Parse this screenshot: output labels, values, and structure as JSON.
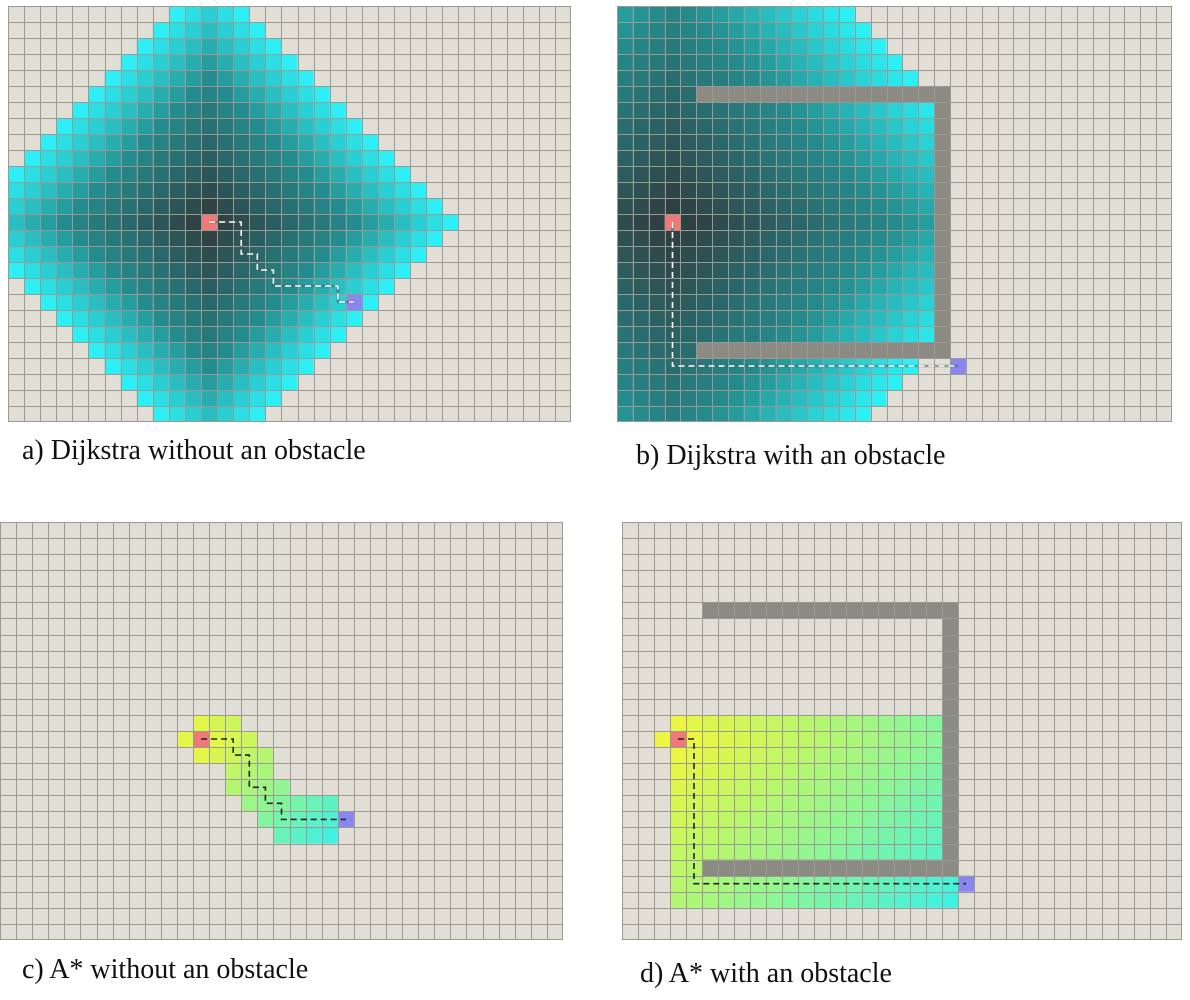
{
  "colors": {
    "background": "#e0ded5",
    "grid_line": "#9a9a92",
    "wall": "#8b8b83",
    "start": "#f07878",
    "goal": "#8a86f0",
    "path_light": "#ffffff",
    "path_dark": "#222222"
  },
  "grid": {
    "cols": 35,
    "rows": 26
  },
  "panels": [
    {
      "caption": "a) Dijkstra without an obstacle",
      "algorithm": "dijkstra",
      "start": [
        12,
        13
      ],
      "goal": [
        21,
        18
      ],
      "explored_radius": 15,
      "walls": [],
      "path": [
        [
          12,
          13
        ],
        [
          14,
          13
        ],
        [
          14,
          15
        ],
        [
          15,
          15
        ],
        [
          15,
          16
        ],
        [
          16,
          16
        ],
        [
          16,
          17
        ],
        [
          20,
          17
        ],
        [
          20,
          18
        ],
        [
          21,
          18
        ]
      ],
      "path_style": "light"
    },
    {
      "caption": "b) Dijkstra with an obstacle",
      "algorithm": "dijkstra",
      "start": [
        3,
        13
      ],
      "goal": [
        21,
        22
      ],
      "explored_radius": 24,
      "walls": [
        {
          "from": [
            5,
            5
          ],
          "to": [
            20,
            5
          ]
        },
        {
          "from": [
            20,
            5
          ],
          "to": [
            20,
            21
          ]
        },
        {
          "from": [
            5,
            21
          ],
          "to": [
            20,
            21
          ]
        }
      ],
      "path": [
        [
          3,
          13
        ],
        [
          3,
          22
        ],
        [
          21,
          22
        ]
      ],
      "path_style": "light"
    },
    {
      "caption": "c) A* without an obstacle",
      "algorithm": "astar",
      "start": [
        12,
        13
      ],
      "goal": [
        21,
        18
      ],
      "explored_cells": [
        [
          11,
          13
        ],
        [
          12,
          12
        ],
        [
          13,
          12
        ],
        [
          14,
          12
        ],
        [
          13,
          13
        ],
        [
          14,
          13
        ],
        [
          15,
          13
        ],
        [
          12,
          14
        ],
        [
          13,
          14
        ],
        [
          14,
          14
        ],
        [
          15,
          14
        ],
        [
          16,
          14
        ],
        [
          14,
          15
        ],
        [
          15,
          15
        ],
        [
          16,
          15
        ],
        [
          14,
          16
        ],
        [
          15,
          16
        ],
        [
          16,
          16
        ],
        [
          17,
          16
        ],
        [
          15,
          17
        ],
        [
          16,
          17
        ],
        [
          17,
          17
        ],
        [
          18,
          17
        ],
        [
          19,
          17
        ],
        [
          20,
          17
        ],
        [
          16,
          18
        ],
        [
          17,
          18
        ],
        [
          18,
          18
        ],
        [
          19,
          18
        ],
        [
          20,
          18
        ],
        [
          17,
          19
        ],
        [
          18,
          19
        ],
        [
          19,
          19
        ],
        [
          20,
          19
        ]
      ],
      "walls": [],
      "path": [
        [
          12,
          13
        ],
        [
          14,
          13
        ],
        [
          14,
          14
        ],
        [
          15,
          14
        ],
        [
          15,
          16
        ],
        [
          16,
          16
        ],
        [
          16,
          17
        ],
        [
          17,
          17
        ],
        [
          17,
          18
        ],
        [
          21,
          18
        ]
      ],
      "path_style": "dark"
    },
    {
      "caption": "d) A* with an obstacle",
      "algorithm": "astar",
      "start": [
        3,
        13
      ],
      "goal": [
        21,
        22
      ],
      "explored_box": [
        3,
        12,
        20,
        23
      ],
      "extra_explored": [
        [
          2,
          13
        ]
      ],
      "walls": [
        {
          "from": [
            5,
            5
          ],
          "to": [
            20,
            5
          ]
        },
        {
          "from": [
            20,
            5
          ],
          "to": [
            20,
            21
          ]
        },
        {
          "from": [
            5,
            21
          ],
          "to": [
            20,
            21
          ]
        }
      ],
      "path": [
        [
          3,
          13
        ],
        [
          4,
          13
        ],
        [
          4,
          22
        ],
        [
          21,
          22
        ]
      ],
      "path_style": "dark"
    }
  ]
}
